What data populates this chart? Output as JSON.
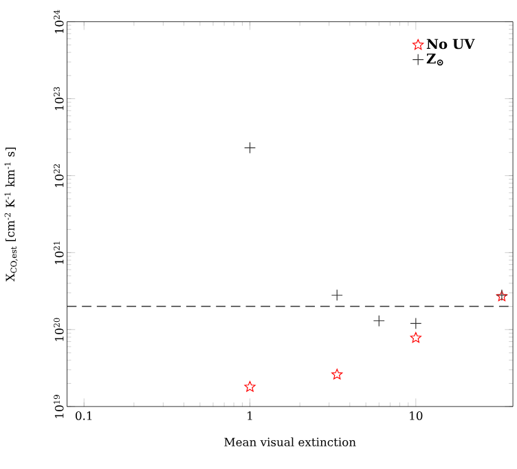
{
  "chart_data": {
    "type": "scatter",
    "xlabel": "Mean visual extinction",
    "ylabel": "X$_{CO,est}$ [cm$^{-2}$ K$^{-1}$ km$^{-1}$ s]",
    "log": "xy",
    "xlim": [
      0.079,
      38.5
    ],
    "ylim": [
      1e+19,
      1e+24
    ],
    "xticks": [
      0.1,
      1,
      10
    ],
    "yticks": [
      {
        "value": 1e+19,
        "label": "10$^{19}$"
      },
      {
        "value": 1e+20,
        "label": "10$^{20}$"
      },
      {
        "value": 1e+21,
        "label": "10$^{21}$"
      },
      {
        "value": 1e+22,
        "label": "10$^{22}$"
      },
      {
        "value": 1e+23,
        "label": "10$^{23}$"
      },
      {
        "value": 1e+24,
        "label": "10$^{24}$"
      }
    ],
    "legend": "top right",
    "grid": false,
    "series": [
      {
        "name": "No UV",
        "color": "#ff0000",
        "marker": "star",
        "x": [
          1,
          3.35,
          10,
          33
        ],
        "values": [
          1.8e+19,
          2.6e+19,
          7.8e+19,
          2.7e+20
        ]
      },
      {
        "name": "Z$_{⊙}$",
        "color": "#333333",
        "marker": "cross",
        "x": [
          1,
          3.35,
          6,
          10,
          33
        ],
        "values": [
          2.3e+22,
          2.8e+20,
          1.3e+20,
          1.2e+20,
          2.8e+20
        ]
      }
    ],
    "ref_lines": [
      {
        "axis": "y",
        "value": 2e+20,
        "color": "#333333",
        "line_style": "dashed"
      }
    ]
  }
}
